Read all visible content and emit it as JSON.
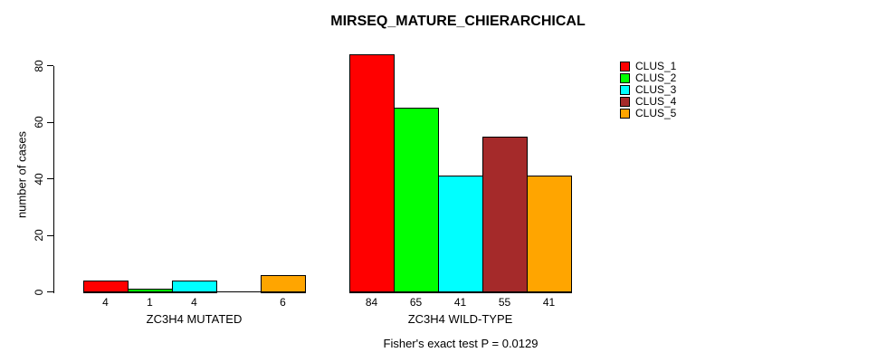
{
  "chart_data": {
    "type": "bar",
    "title": "MIRSEQ_MATURE_CHIERARCHICAL",
    "ylabel": "number of cases",
    "xlabel": "",
    "ylim": [
      0,
      84
    ],
    "y_ticks": [
      0,
      20,
      40,
      60,
      80
    ],
    "grid": false,
    "legend_position": "right",
    "series": [
      {
        "name": "CLUS_1",
        "color": "#FF0000"
      },
      {
        "name": "CLUS_2",
        "color": "#00FF00"
      },
      {
        "name": "CLUS_3",
        "color": "#00FFFF"
      },
      {
        "name": "CLUS_4",
        "color": "#A52A2A"
      },
      {
        "name": "CLUS_5",
        "color": "#FFA500"
      }
    ],
    "groups": [
      {
        "label": "ZC3H4 MUTATED",
        "values": [
          4,
          1,
          4,
          0,
          6
        ],
        "value_labels": [
          "4",
          "1",
          "4",
          "",
          "6"
        ]
      },
      {
        "label": "ZC3H4 WILD-TYPE",
        "values": [
          84,
          65,
          41,
          55,
          41
        ],
        "value_labels": [
          "84",
          "65",
          "41",
          "55",
          "41"
        ]
      }
    ],
    "annotation": "Fisher's exact test P = 0.0129"
  },
  "colors": {
    "background": "#FFFFFF",
    "axis": "#000000",
    "text": "#000000",
    "bar_border": "#000000"
  }
}
